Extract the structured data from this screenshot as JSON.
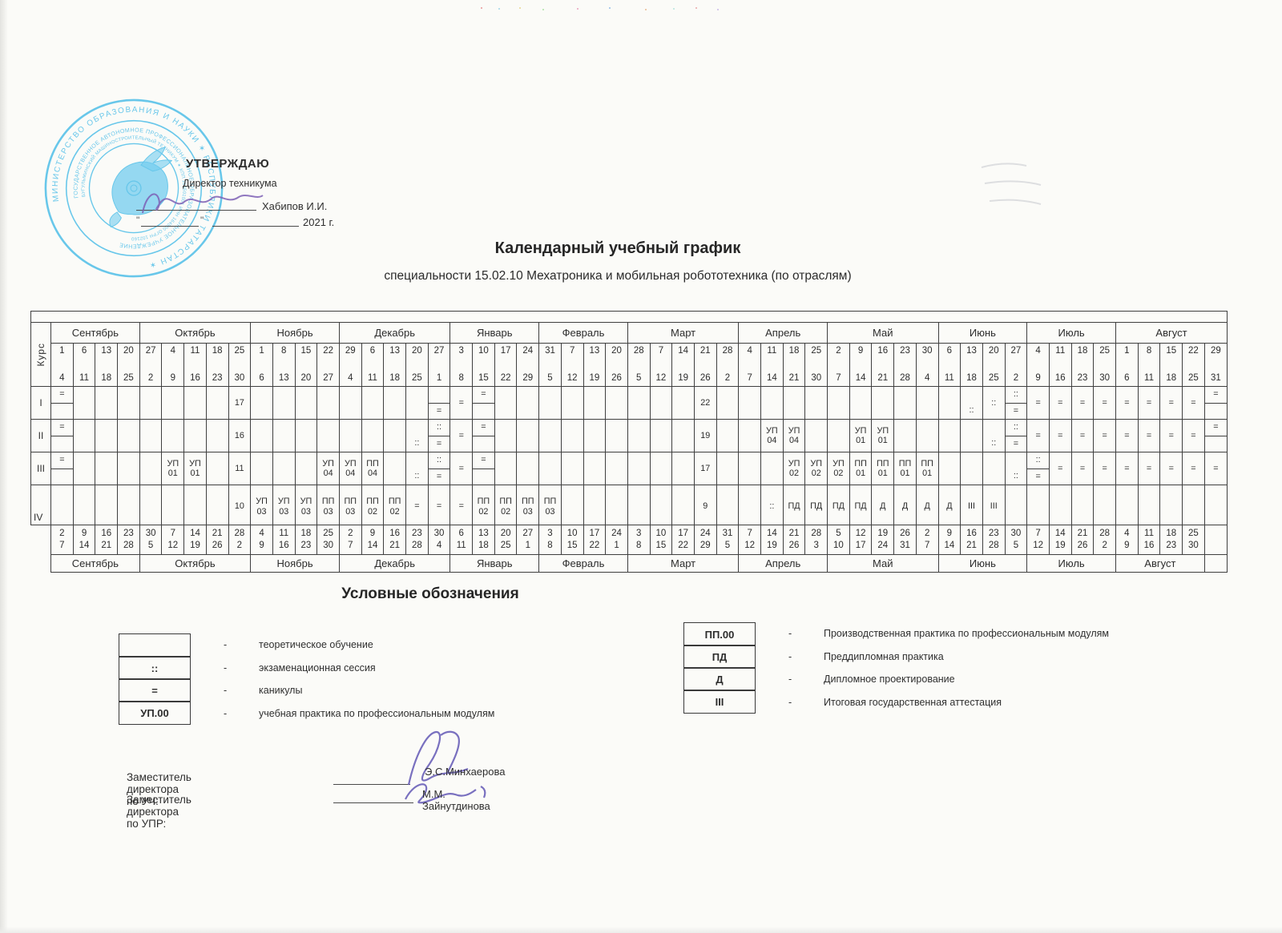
{
  "document": {
    "approval": {
      "heading": "УТВЕРЖДАЮ",
      "line1": "Директор техникума",
      "signer": "Хабипов И.И.",
      "year": "2021 г."
    },
    "title": "Календарный учебный график",
    "subtitle": "специальности 15.02.10 Мехатроника и мобильная робототехника (по отраслям)"
  },
  "stamp": {
    "outer_ring": "МИНИСТЕРСТВО  ОБРАЗОВАНИЯ  И  НАУКИ  ✶  РЕСПУБЛИКИ  ТАТАРСТАН  ✶",
    "middle_ring": "ГОСУДАРСТВЕННОЕ АВТОНОМНОЕ ПРОФЕССИОНАЛЬНОЕ ОБРАЗОВАТЕЛЬНОЕ УЧРЕЖДЕНИЕ",
    "inner_ring": "БУГУЛЬМИНСКИЙ МАШИНОСТРОИТЕЛЬНЫЙ ТЕХНИКУМ ✶ КПП 164501001 ИНН 164500 ОГРН 102160",
    "color": "#49bce8"
  },
  "table": {
    "axis_label": "Курс",
    "months_top": [
      {
        "name": "Сентябрь",
        "weeks": [
          [
            "1",
            "4"
          ],
          [
            "6",
            "11"
          ],
          [
            "13",
            "18"
          ],
          [
            "20",
            "25"
          ]
        ]
      },
      {
        "name": "Октябрь",
        "weeks": [
          [
            "27",
            "2"
          ],
          [
            "4",
            "9"
          ],
          [
            "11",
            "16"
          ],
          [
            "18",
            "23"
          ],
          [
            "25",
            "30"
          ]
        ]
      },
      {
        "name": "Ноябрь",
        "weeks": [
          [
            "1",
            "6"
          ],
          [
            "8",
            "13"
          ],
          [
            "15",
            "20"
          ],
          [
            "22",
            "27"
          ]
        ]
      },
      {
        "name": "Декабрь",
        "weeks": [
          [
            "29",
            "4"
          ],
          [
            "6",
            "11"
          ],
          [
            "13",
            "18"
          ],
          [
            "20",
            "25"
          ],
          [
            "27",
            "1"
          ]
        ]
      },
      {
        "name": "Январь",
        "weeks": [
          [
            "3",
            "8"
          ],
          [
            "10",
            "15"
          ],
          [
            "17",
            "22"
          ],
          [
            "24",
            "29"
          ]
        ]
      },
      {
        "name": "Февраль",
        "weeks": [
          [
            "31",
            "5"
          ],
          [
            "7",
            "12"
          ],
          [
            "13",
            "19"
          ],
          [
            "20",
            "26"
          ]
        ]
      },
      {
        "name": "Март",
        "weeks": [
          [
            "28",
            "5"
          ],
          [
            "7",
            "12"
          ],
          [
            "14",
            "19"
          ],
          [
            "21",
            "26"
          ],
          [
            "28",
            "2"
          ]
        ]
      },
      {
        "name": "Апрель",
        "weeks": [
          [
            "4",
            "7"
          ],
          [
            "11",
            "14"
          ],
          [
            "18",
            "21"
          ],
          [
            "25",
            "30"
          ]
        ]
      },
      {
        "name": "Май",
        "weeks": [
          [
            "2",
            "7"
          ],
          [
            "9",
            "14"
          ],
          [
            "16",
            "21"
          ],
          [
            "23",
            "28"
          ],
          [
            "30",
            "4"
          ]
        ]
      },
      {
        "name": "Июнь",
        "weeks": [
          [
            "6",
            "11"
          ],
          [
            "13",
            "18"
          ],
          [
            "20",
            "25"
          ],
          [
            "27",
            "2"
          ]
        ]
      },
      {
        "name": "Июль",
        "weeks": [
          [
            "4",
            "9"
          ],
          [
            "11",
            "16"
          ],
          [
            "18",
            "23"
          ],
          [
            "25",
            "30"
          ]
        ]
      },
      {
        "name": "Август",
        "weeks": [
          [
            "1",
            "6"
          ],
          [
            "8",
            "11"
          ],
          [
            "15",
            "18"
          ],
          [
            "22",
            "25"
          ],
          [
            "29",
            "31"
          ]
        ]
      }
    ],
    "rows": [
      {
        "label": "I",
        "marks": [
          {
            "c": 1,
            "v": "=",
            "pos": "top"
          },
          {
            "c": 9,
            "v": "17"
          },
          {
            "c": 18,
            "v": "",
            "v2": "=",
            "pos": "split"
          },
          {
            "c": 19,
            "v": "="
          },
          {
            "c": 20,
            "v": "=",
            "pos": "top"
          },
          {
            "c": 30,
            "v": "22"
          },
          {
            "c": 42,
            "v": "::",
            "pos": "bottom"
          },
          {
            "c": 43,
            "v": "::"
          },
          {
            "c": 44,
            "v": "::",
            "v2": "=",
            "pos": "split"
          },
          {
            "c": 45,
            "v": "="
          },
          {
            "c": 46,
            "v": "="
          },
          {
            "c": 47,
            "v": "="
          },
          {
            "c": 48,
            "v": "="
          },
          {
            "c": 49,
            "v": "="
          },
          {
            "c": 50,
            "v": "="
          },
          {
            "c": 51,
            "v": "="
          },
          {
            "c": 52,
            "v": "="
          },
          {
            "c": 53,
            "v": "=",
            "pos": "top"
          }
        ]
      },
      {
        "label": "II",
        "marks": [
          {
            "c": 1,
            "v": "=",
            "pos": "top"
          },
          {
            "c": 9,
            "v": "16"
          },
          {
            "c": 17,
            "v": "::",
            "pos": "bottom"
          },
          {
            "c": 18,
            "v": "::",
            "v2": "=",
            "pos": "split"
          },
          {
            "c": 19,
            "v": "="
          },
          {
            "c": 20,
            "v": "=",
            "pos": "top"
          },
          {
            "c": 30,
            "v": "19"
          },
          {
            "c": 33,
            "v": "УП 04"
          },
          {
            "c": 34,
            "v": "УП 04"
          },
          {
            "c": 37,
            "v": "УП 01"
          },
          {
            "c": 38,
            "v": "УП 01"
          },
          {
            "c": 43,
            "v": "::",
            "pos": "bottom"
          },
          {
            "c": 44,
            "v": "::",
            "v2": "=",
            "pos": "split"
          },
          {
            "c": 45,
            "v": "="
          },
          {
            "c": 46,
            "v": "="
          },
          {
            "c": 47,
            "v": "="
          },
          {
            "c": 48,
            "v": "="
          },
          {
            "c": 49,
            "v": "="
          },
          {
            "c": 50,
            "v": "="
          },
          {
            "c": 51,
            "v": "="
          },
          {
            "c": 52,
            "v": "="
          },
          {
            "c": 53,
            "v": "=",
            "pos": "top"
          }
        ]
      },
      {
        "label": "III",
        "marks": [
          {
            "c": 1,
            "v": "=",
            "pos": "top"
          },
          {
            "c": 6,
            "v": "УП 01"
          },
          {
            "c": 7,
            "v": "УП 01"
          },
          {
            "c": 9,
            "v": "11"
          },
          {
            "c": 13,
            "v": "УП 04"
          },
          {
            "c": 14,
            "v": "УП 04"
          },
          {
            "c": 15,
            "v": "ПП 04"
          },
          {
            "c": 17,
            "v": "::",
            "pos": "bottom"
          },
          {
            "c": 18,
            "v": "::",
            "v2": "=",
            "pos": "split"
          },
          {
            "c": 19,
            "v": "="
          },
          {
            "c": 20,
            "v": "=",
            "pos": "top"
          },
          {
            "c": 30,
            "v": "17"
          },
          {
            "c": 34,
            "v": "УП 02"
          },
          {
            "c": 35,
            "v": "УП 02"
          },
          {
            "c": 36,
            "v": "УП 02"
          },
          {
            "c": 37,
            "v": "ПП 01"
          },
          {
            "c": 38,
            "v": "ПП 01"
          },
          {
            "c": 39,
            "v": "ПП 01"
          },
          {
            "c": 40,
            "v": "ПП 01"
          },
          {
            "c": 44,
            "v": "::",
            "pos": "bottom"
          },
          {
            "c": 45,
            "v": "::",
            "v2": "=",
            "pos": "split"
          },
          {
            "c": 46,
            "v": "="
          },
          {
            "c": 47,
            "v": "="
          },
          {
            "c": 48,
            "v": "="
          },
          {
            "c": 49,
            "v": "="
          },
          {
            "c": 50,
            "v": "="
          },
          {
            "c": 51,
            "v": "="
          },
          {
            "c": 52,
            "v": "="
          },
          {
            "c": 53,
            "v": "="
          }
        ]
      },
      {
        "label": "IV",
        "marks": [
          {
            "c": 9,
            "v": "10"
          },
          {
            "c": 10,
            "v": "УП 03"
          },
          {
            "c": 11,
            "v": "УП 03"
          },
          {
            "c": 12,
            "v": "УП 03"
          },
          {
            "c": 13,
            "v": "ПП 03"
          },
          {
            "c": 14,
            "v": "ПП 03"
          },
          {
            "c": 15,
            "v": "ПП 02"
          },
          {
            "c": 16,
            "v": "ПП 02"
          },
          {
            "c": 17,
            "v": "="
          },
          {
            "c": 18,
            "v": "="
          },
          {
            "c": 19,
            "v": "="
          },
          {
            "c": 20,
            "v": "ПП 02"
          },
          {
            "c": 21,
            "v": "ПП 02"
          },
          {
            "c": 22,
            "v": "ПП 03"
          },
          {
            "c": 23,
            "v": "ПП 03"
          },
          {
            "c": 30,
            "v": "9"
          },
          {
            "c": 33,
            "v": "::"
          },
          {
            "c": 34,
            "v": "ПД"
          },
          {
            "c": 35,
            "v": "ПД"
          },
          {
            "c": 36,
            "v": "ПД"
          },
          {
            "c": 37,
            "v": "ПД"
          },
          {
            "c": 38,
            "v": "Д"
          },
          {
            "c": 39,
            "v": "Д"
          },
          {
            "c": 40,
            "v": "Д"
          },
          {
            "c": 41,
            "v": "Д"
          },
          {
            "c": 42,
            "v": "III"
          },
          {
            "c": 43,
            "v": "III"
          }
        ]
      }
    ],
    "months_bottom": [
      {
        "name": "Сентябрь",
        "weeks": [
          [
            "2",
            "7"
          ],
          [
            "9",
            "14"
          ],
          [
            "16",
            "21"
          ],
          [
            "23",
            "28"
          ]
        ]
      },
      {
        "name": "Октябрь",
        "weeks": [
          [
            "30",
            "5"
          ],
          [
            "7",
            "12"
          ],
          [
            "14",
            "19"
          ],
          [
            "21",
            "26"
          ],
          [
            "28",
            "2"
          ]
        ]
      },
      {
        "name": "Ноябрь",
        "weeks": [
          [
            "4",
            "9"
          ],
          [
            "11",
            "16"
          ],
          [
            "18",
            "23"
          ],
          [
            "25",
            "30"
          ]
        ]
      },
      {
        "name": "Декабрь",
        "weeks": [
          [
            "2",
            "7"
          ],
          [
            "9",
            "14"
          ],
          [
            "16",
            "21"
          ],
          [
            "23",
            "28"
          ],
          [
            "30",
            "4"
          ]
        ]
      },
      {
        "name": "Январь",
        "weeks": [
          [
            "6",
            "11"
          ],
          [
            "13",
            "18"
          ],
          [
            "20",
            "25"
          ],
          [
            "27",
            "1"
          ]
        ]
      },
      {
        "name": "Февраль",
        "weeks": [
          [
            "3",
            "8"
          ],
          [
            "10",
            "15"
          ],
          [
            "17",
            "22"
          ],
          [
            "24",
            "1"
          ]
        ]
      },
      {
        "name": "Март",
        "weeks": [
          [
            "3",
            "8"
          ],
          [
            "10",
            "15"
          ],
          [
            "17",
            "22"
          ],
          [
            "24",
            "29"
          ],
          [
            "31",
            "5"
          ]
        ]
      },
      {
        "name": "Апрель",
        "weeks": [
          [
            "7",
            "12"
          ],
          [
            "14",
            "19"
          ],
          [
            "21",
            "26"
          ],
          [
            "28",
            "3"
          ]
        ]
      },
      {
        "name": "Май",
        "weeks": [
          [
            "5",
            "10"
          ],
          [
            "12",
            "17"
          ],
          [
            "19",
            "24"
          ],
          [
            "26",
            "31"
          ],
          [
            "2",
            "7"
          ]
        ]
      },
      {
        "name": "Июнь",
        "weeks": [
          [
            "9",
            "14"
          ],
          [
            "16",
            "21"
          ],
          [
            "23",
            "28"
          ],
          [
            "30",
            "5"
          ]
        ]
      },
      {
        "name": "Июль",
        "weeks": [
          [
            "7",
            "12"
          ],
          [
            "14",
            "19"
          ],
          [
            "21",
            "26"
          ],
          [
            "28",
            "2"
          ]
        ]
      },
      {
        "name": "Август",
        "weeks": [
          [
            "4",
            "9"
          ],
          [
            "11",
            "16"
          ],
          [
            "18",
            "23"
          ],
          [
            "25",
            "30"
          ]
        ]
      }
    ]
  },
  "legend": {
    "title": "Условные обозначения",
    "left": [
      {
        "symbol": "",
        "label": "теоретическое обучение"
      },
      {
        "symbol": "::",
        "label": "экзаменационная сессия"
      },
      {
        "symbol": "=",
        "label": "каникулы"
      },
      {
        "symbol": "УП.00",
        "label": "учебная практика по профессиональным модулям"
      }
    ],
    "right": [
      {
        "symbol": "ПП.00",
        "label": "Производственная практика по профессиональным модулям"
      },
      {
        "symbol": "ПД",
        "label": "Преддипломная практика"
      },
      {
        "symbol": "Д",
        "label": "Дипломное проектирование"
      },
      {
        "symbol": "III",
        "label": "Итоговая государственная аттестация"
      }
    ]
  },
  "signatures": {
    "row1_role": "Заместитель директора по УЧ:",
    "row1_name": "Э.С.Минхаерова",
    "row2_role": "Заместитель директора по УПР:",
    "row2_name": "М.М. Зайнутдинова"
  }
}
